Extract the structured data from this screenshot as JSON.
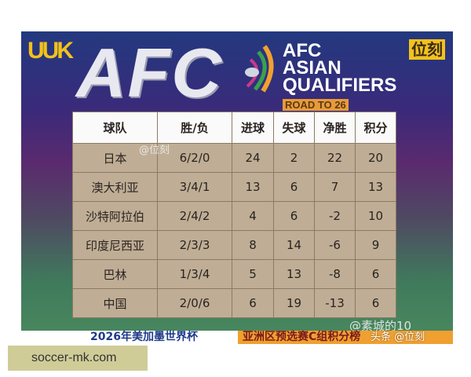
{
  "logos": {
    "left": "UUK",
    "right": "位刻",
    "afc": "AFC"
  },
  "title": {
    "line1": "AFC",
    "line2": "ASIAN",
    "line3": "QUALIFIERS",
    "road": "ROAD TO 26"
  },
  "table": {
    "headers": [
      "球队",
      "胜/负",
      "进球",
      "失球",
      "净胜",
      "积分"
    ],
    "rows": [
      [
        "日本",
        "6/2/0",
        "24",
        "2",
        "22",
        "20"
      ],
      [
        "澳大利亚",
        "3/4/1",
        "13",
        "6",
        "7",
        "13"
      ],
      [
        "沙特阿拉伯",
        "2/4/2",
        "4",
        "6",
        "-2",
        "10"
      ],
      [
        "印度尼西亚",
        "2/3/3",
        "8",
        "14",
        "-6",
        "9"
      ],
      [
        "巴林",
        "1/3/4",
        "5",
        "13",
        "-8",
        "6"
      ],
      [
        "中国",
        "2/0/6",
        "6",
        "19",
        "-13",
        "6"
      ]
    ]
  },
  "banner": {
    "left": "2026年美加墨世界杯",
    "right": "亚洲区预选赛C组积分榜"
  },
  "watermarks": {
    "w1": "@素城的10",
    "w2": "头条 @位刻",
    "cell": "@位刻"
  },
  "site": "soccer-mk.com"
}
